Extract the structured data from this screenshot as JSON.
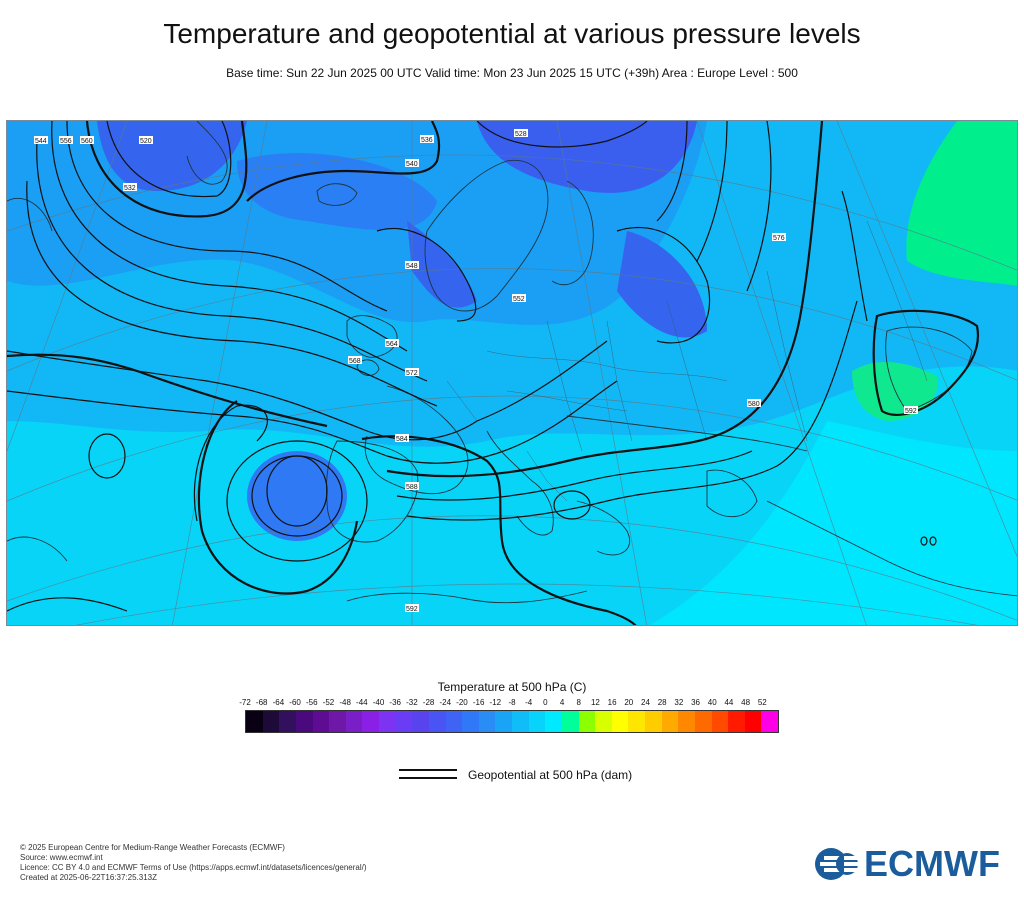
{
  "title": "Temperature and geopotential at various pressure levels",
  "subtitle": "Base time: Sun 22 Jun 2025 00 UTC Valid time: Mon 23 Jun 2025 15 UTC (+39h) Area : Europe Level : 500",
  "map": {
    "contour_labels": [
      "520",
      "528",
      "532",
      "536",
      "540",
      "544",
      "548",
      "552",
      "556",
      "560",
      "564",
      "568",
      "572",
      "576",
      "580",
      "584",
      "588",
      "592"
    ]
  },
  "legend": {
    "temperature_title": "Temperature at 500 hPa (C)",
    "ticks": [
      "-72",
      "-68",
      "-64",
      "-60",
      "-56",
      "-52",
      "-48",
      "-44",
      "-40",
      "-36",
      "-32",
      "-28",
      "-24",
      "-20",
      "-16",
      "-12",
      "-8",
      "-4",
      "0",
      "4",
      "8",
      "12",
      "16",
      "20",
      "24",
      "28",
      "32",
      "36",
      "40",
      "44",
      "48",
      "52"
    ],
    "colors": [
      "#0a0014",
      "#1d0a38",
      "#32105e",
      "#4a0a7d",
      "#5e0c93",
      "#6f18a8",
      "#7a1fc8",
      "#8a1fe6",
      "#7c33f2",
      "#6a3cf5",
      "#5843ef",
      "#4954f5",
      "#3f63f5",
      "#2f78f7",
      "#2a8cf5",
      "#1aa4f6",
      "#10bdf8",
      "#08d4fb",
      "#00eaff",
      "#00ff9a",
      "#8cff00",
      "#d8ff00",
      "#ffff00",
      "#ffe600",
      "#ffcc00",
      "#ffaa00",
      "#ff8800",
      "#ff6a00",
      "#ff4a00",
      "#ff1a00",
      "#ff0000",
      "#ff00e6"
    ],
    "geopotential_label": "Geopotential at 500 hPa (dam)"
  },
  "footer": {
    "copyright": "© 2025 European Centre for Medium-Range Weather Forecasts (ECMWF)",
    "source": "Source: www.ecmwf.int",
    "licence": "Licence: CC BY 4.0 and ECMWF Terms of Use (https://apps.ecmwf.int/datasets/licences/general/)",
    "created": "Created at 2025-06-22T16:37:25.313Z"
  },
  "logo": {
    "text": "ECMWF",
    "color": "#1b5d9c"
  }
}
